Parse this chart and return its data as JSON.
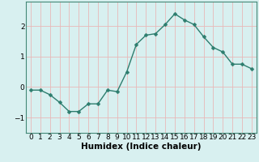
{
  "x": [
    0,
    1,
    2,
    3,
    4,
    5,
    6,
    7,
    8,
    9,
    10,
    11,
    12,
    13,
    14,
    15,
    16,
    17,
    18,
    19,
    20,
    21,
    22,
    23
  ],
  "y": [
    -0.1,
    -0.1,
    -0.25,
    -0.5,
    -0.8,
    -0.8,
    -0.55,
    -0.55,
    -0.1,
    -0.15,
    0.5,
    1.4,
    1.7,
    1.75,
    2.05,
    2.4,
    2.2,
    2.05,
    1.65,
    1.3,
    1.15,
    0.75,
    0.75,
    0.6
  ],
  "line_color": "#2d7d6e",
  "marker": "D",
  "marker_size": 2.5,
  "bg_color": "#d8f0f0",
  "grid_color": "#c8e0e0",
  "xlabel": "Humidex (Indice chaleur)",
  "xlim": [
    -0.5,
    23.5
  ],
  "ylim": [
    -1.5,
    2.8
  ],
  "yticks": [
    -1,
    0,
    1,
    2
  ],
  "xticks": [
    0,
    1,
    2,
    3,
    4,
    5,
    6,
    7,
    8,
    9,
    10,
    11,
    12,
    13,
    14,
    15,
    16,
    17,
    18,
    19,
    20,
    21,
    22,
    23
  ],
  "label_fontsize": 7.5,
  "tick_fontsize": 6.5
}
